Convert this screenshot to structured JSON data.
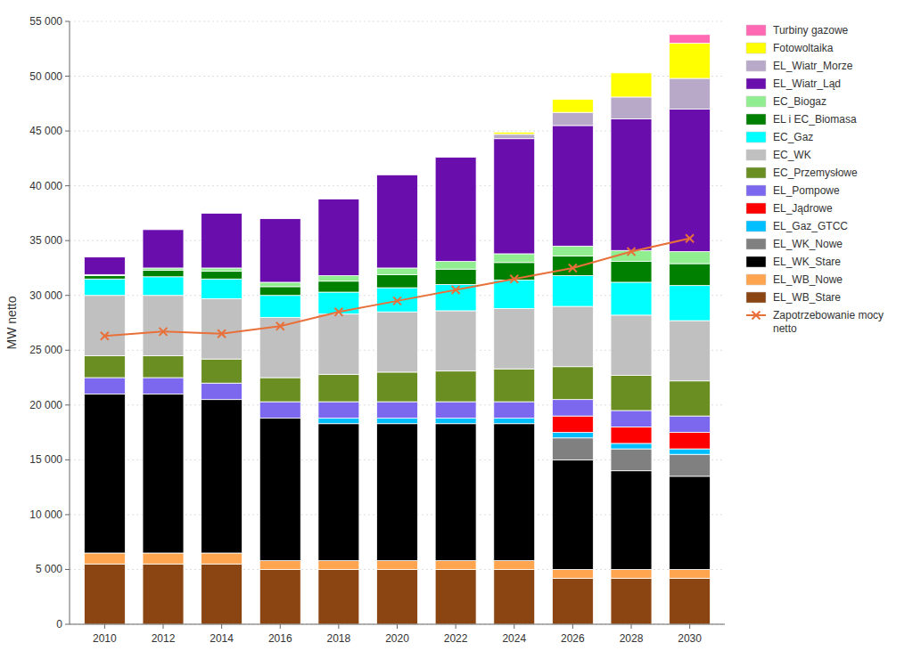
{
  "chart_data": {
    "type": "bar",
    "stacked": true,
    "ylabel": "MW netto",
    "x": [
      2010,
      2012,
      2014,
      2016,
      2018,
      2020,
      2022,
      2024,
      2026,
      2028,
      2030
    ],
    "xlim": [
      2008.8,
      2031.2
    ],
    "xticks": [
      2010,
      2012,
      2014,
      2016,
      2018,
      2020,
      2022,
      2024,
      2026,
      2028,
      2030
    ],
    "ylim": [
      0,
      55000
    ],
    "yticks": [
      0,
      {
        "value": 5000,
        "label": "5 000"
      },
      {
        "value": 10000,
        "label": "10 000"
      },
      {
        "value": 15000,
        "label": "15 000"
      },
      {
        "value": 20000,
        "label": "20 000"
      },
      {
        "value": 25000,
        "label": "25 000"
      },
      {
        "value": 30000,
        "label": "30 000"
      },
      {
        "value": 35000,
        "label": "35 000"
      },
      {
        "value": 40000,
        "label": "40 000"
      },
      {
        "value": 45000,
        "label": "45 000"
      },
      {
        "value": 50000,
        "label": "50 000"
      },
      {
        "value": 55000,
        "label": "55 000"
      }
    ],
    "grid": true,
    "legend": "right",
    "series": [
      {
        "name": "EL_WB_Stare",
        "type": "bar",
        "color": "#8B4513",
        "values": [
          5500,
          5500,
          5500,
          5000,
          5000,
          5000,
          5000,
          5000,
          4200,
          4200,
          4200
        ]
      },
      {
        "name": "EL_WB_Nowe",
        "type": "bar",
        "color": "#FFA54F",
        "values": [
          1000,
          1000,
          1000,
          800,
          800,
          800,
          800,
          800,
          800,
          800,
          800
        ]
      },
      {
        "name": "EL_WK_Stare",
        "type": "bar",
        "color": "#000000",
        "values": [
          14500,
          14500,
          14000,
          13000,
          12500,
          12500,
          12500,
          12500,
          10000,
          9000,
          8500
        ]
      },
      {
        "name": "EL_WK_Nowe",
        "type": "bar",
        "color": "#808080",
        "values": [
          0,
          0,
          0,
          0,
          0,
          0,
          0,
          0,
          2000,
          2000,
          2000
        ]
      },
      {
        "name": "EL_Gaz_GTCC",
        "type": "bar",
        "color": "#00BFFF",
        "values": [
          0,
          0,
          0,
          0,
          500,
          500,
          500,
          500,
          500,
          500,
          500
        ]
      },
      {
        "name": "EL_Jądrowe",
        "type": "bar",
        "color": "#FF0000",
        "values": [
          0,
          0,
          0,
          0,
          0,
          0,
          0,
          0,
          1500,
          1500,
          1500
        ]
      },
      {
        "name": "EL_Pompowe",
        "type": "bar",
        "color": "#7B68EE",
        "values": [
          1500,
          1500,
          1500,
          1500,
          1500,
          1500,
          1500,
          1500,
          1500,
          1500,
          1500
        ]
      },
      {
        "name": "EC_Przemysłowe",
        "type": "bar",
        "color": "#6B8E23",
        "values": [
          2000,
          2000,
          2200,
          2200,
          2500,
          2700,
          2800,
          3000,
          3000,
          3200,
          3200
        ]
      },
      {
        "name": "EC_WK",
        "type": "bar",
        "color": "#C0C0C0",
        "values": [
          5500,
          5500,
          5500,
          5500,
          5500,
          5500,
          5500,
          5500,
          5500,
          5500,
          5500
        ]
      },
      {
        "name": "EC_Gaz",
        "type": "bar",
        "color": "#00FFFF",
        "values": [
          1500,
          1700,
          1800,
          2000,
          2000,
          2200,
          2400,
          2600,
          2800,
          3000,
          3200
        ]
      },
      {
        "name": "EL i EC_Biomasa",
        "type": "bar",
        "color": "#008000",
        "values": [
          300,
          600,
          700,
          800,
          1000,
          1200,
          1400,
          1600,
          1800,
          1900,
          2000
        ]
      },
      {
        "name": "EC_Biogaz",
        "type": "bar",
        "color": "#90EE90",
        "values": [
          100,
          200,
          300,
          400,
          500,
          600,
          700,
          800,
          900,
          1000,
          1100
        ]
      },
      {
        "name": "EL_Wiatr_Ląd",
        "type": "bar",
        "color": "#6A0DAD",
        "values": [
          1600,
          3500,
          5000,
          5800,
          7000,
          8500,
          9500,
          10500,
          11000,
          12000,
          13000
        ]
      },
      {
        "name": "EL_Wiatr_Morze",
        "type": "bar",
        "color": "#B8A9C9",
        "values": [
          0,
          0,
          0,
          0,
          0,
          0,
          0,
          400,
          1200,
          2000,
          2800
        ]
      },
      {
        "name": "Fotowoltaika",
        "type": "bar",
        "color": "#FFFF00",
        "values": [
          0,
          0,
          0,
          0,
          0,
          0,
          0,
          200,
          1200,
          2200,
          3200
        ]
      },
      {
        "name": "Turbiny gazowe",
        "type": "bar",
        "color": "#FF69B4",
        "values": [
          0,
          0,
          0,
          0,
          0,
          0,
          0,
          0,
          0,
          0,
          800
        ]
      },
      {
        "name": "Zapotrzebowanie mocy\nnetto",
        "type": "line",
        "color": "#E8703A",
        "marker": "x",
        "values": [
          26300,
          26700,
          26500,
          27200,
          28500,
          29500,
          30500,
          31500,
          32500,
          34000,
          35200
        ]
      }
    ]
  }
}
